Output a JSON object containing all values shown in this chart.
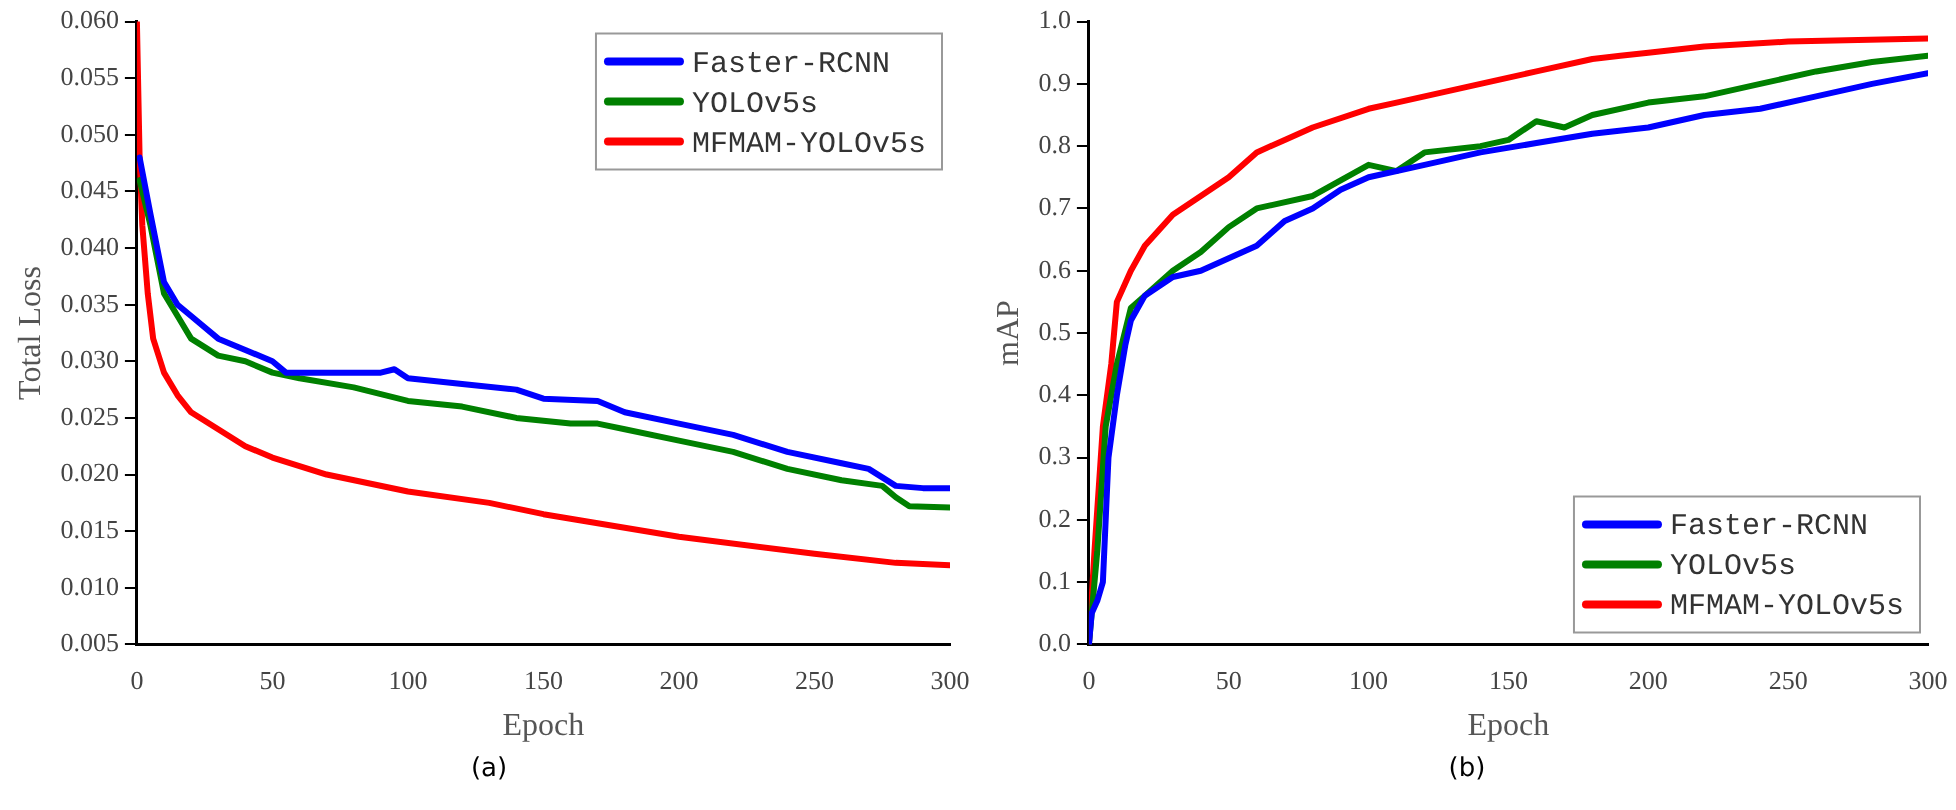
{
  "chart_data": [
    {
      "type": "line",
      "xlabel": "Epoch",
      "ylabel": "Total Loss",
      "annotations": [
        "(a)"
      ],
      "xlim": [
        0,
        300
      ],
      "xticks": [
        0,
        50,
        100,
        150,
        200,
        250,
        300
      ],
      "ylim": [
        0.005,
        0.06
      ],
      "yticks": [
        {
          "value": 0.005,
          "label": "0.005"
        },
        {
          "value": 0.01,
          "label": "0.010"
        },
        {
          "value": 0.015,
          "label": "0.015"
        },
        {
          "value": 0.02,
          "label": "0.020"
        },
        {
          "value": 0.025,
          "label": "0.025"
        },
        {
          "value": 0.03,
          "label": "0.030"
        },
        {
          "value": 0.035,
          "label": "0.035"
        },
        {
          "value": 0.04,
          "label": "0.040"
        },
        {
          "value": 0.045,
          "label": "0.045"
        },
        {
          "value": 0.05,
          "label": "0.050"
        },
        {
          "value": 0.055,
          "label": "0.055"
        },
        {
          "value": 0.06,
          "label": "0.060"
        }
      ],
      "grid": false,
      "legend": "top right",
      "marker": "none",
      "line_style": "solid",
      "series": [
        {
          "name": "Faster-RCNN",
          "color": "#0000ff",
          "x": [
            1,
            5,
            10,
            15,
            20,
            30,
            40,
            50,
            55,
            70,
            90,
            95,
            100,
            120,
            140,
            150,
            170,
            180,
            200,
            220,
            240,
            260,
            270,
            280,
            290,
            300
          ],
          "values": [
            0.048,
            0.043,
            0.037,
            0.035,
            0.034,
            0.032,
            0.031,
            0.03,
            0.029,
            0.029,
            0.029,
            0.0293,
            0.0285,
            0.028,
            0.0275,
            0.0267,
            0.0265,
            0.0255,
            0.0245,
            0.0235,
            0.022,
            0.021,
            0.0205,
            0.019,
            0.0188,
            0.0188
          ]
        },
        {
          "name": "YOLOv5s",
          "color": "#008000",
          "x": [
            1,
            5,
            10,
            15,
            20,
            30,
            40,
            50,
            60,
            80,
            100,
            120,
            140,
            160,
            170,
            180,
            200,
            220,
            240,
            260,
            275,
            280,
            285,
            300
          ],
          "values": [
            0.046,
            0.042,
            0.036,
            0.034,
            0.032,
            0.0305,
            0.03,
            0.029,
            0.0285,
            0.0277,
            0.0265,
            0.026,
            0.025,
            0.0245,
            0.0245,
            0.024,
            0.023,
            0.022,
            0.0205,
            0.0195,
            0.019,
            0.018,
            0.0172,
            0.0171
          ]
        },
        {
          "name": "MFMAM-YOLOv5s",
          "color": "#ff0000",
          "x": [
            0,
            1,
            2,
            4,
            6,
            10,
            15,
            20,
            30,
            40,
            50,
            70,
            100,
            130,
            150,
            175,
            200,
            250,
            280,
            300
          ],
          "values": [
            0.06,
            0.048,
            0.042,
            0.036,
            0.032,
            0.029,
            0.027,
            0.0255,
            0.024,
            0.0225,
            0.0215,
            0.02,
            0.0185,
            0.0175,
            0.0165,
            0.0155,
            0.0145,
            0.013,
            0.0122,
            0.012
          ]
        }
      ]
    },
    {
      "type": "line",
      "xlabel": "Epoch",
      "ylabel": "mAP",
      "annotations": [
        "(b)"
      ],
      "xlim": [
        0,
        300
      ],
      "xticks": [
        0,
        50,
        100,
        150,
        200,
        250,
        300
      ],
      "ylim": [
        0,
        1
      ],
      "yticks": [
        {
          "value": 0,
          "label": "0.0"
        },
        0.1,
        0.2,
        0.3,
        0.4,
        0.5,
        0.6,
        0.7,
        0.8,
        0.9,
        {
          "value": 1,
          "label": "1.0"
        }
      ],
      "grid": false,
      "legend": "bottom right",
      "marker": "none",
      "line_style": "solid",
      "series": [
        {
          "name": "Faster-RCNN",
          "color": "#0000ff",
          "x": [
            0,
            1,
            3,
            5,
            7,
            10,
            13,
            15,
            20,
            30,
            40,
            50,
            60,
            70,
            80,
            90,
            100,
            120,
            140,
            160,
            180,
            200,
            220,
            240,
            260,
            280,
            300
          ],
          "values": [
            0,
            0.05,
            0.07,
            0.1,
            0.3,
            0.4,
            0.48,
            0.52,
            0.56,
            0.59,
            0.6,
            0.62,
            0.64,
            0.68,
            0.7,
            0.73,
            0.75,
            0.77,
            0.79,
            0.805,
            0.82,
            0.83,
            0.85,
            0.86,
            0.88,
            0.9,
            0.917
          ]
        },
        {
          "name": "YOLOv5s",
          "color": "#008000",
          "x": [
            0,
            3,
            6,
            10,
            15,
            20,
            25,
            30,
            40,
            50,
            60,
            80,
            100,
            110,
            120,
            140,
            150,
            160,
            170,
            180,
            200,
            220,
            240,
            260,
            280,
            300
          ],
          "values": [
            0,
            0.15,
            0.35,
            0.45,
            0.54,
            0.56,
            0.58,
            0.6,
            0.63,
            0.67,
            0.7,
            0.72,
            0.77,
            0.76,
            0.79,
            0.8,
            0.81,
            0.84,
            0.83,
            0.85,
            0.87,
            0.88,
            0.9,
            0.92,
            0.935,
            0.945
          ]
        },
        {
          "name": "MFMAM-YOLOv5s",
          "color": "#ff0000",
          "x": [
            0,
            2,
            5,
            8,
            10,
            15,
            20,
            30,
            40,
            50,
            60,
            70,
            80,
            100,
            110,
            120,
            140,
            160,
            180,
            190,
            200,
            220,
            250,
            300
          ],
          "values": [
            0,
            0.15,
            0.35,
            0.45,
            0.55,
            0.6,
            0.64,
            0.69,
            0.72,
            0.75,
            0.79,
            0.81,
            0.83,
            0.86,
            0.87,
            0.88,
            0.9,
            0.92,
            0.94,
            0.945,
            0.95,
            0.96,
            0.968,
            0.973
          ]
        }
      ]
    }
  ]
}
